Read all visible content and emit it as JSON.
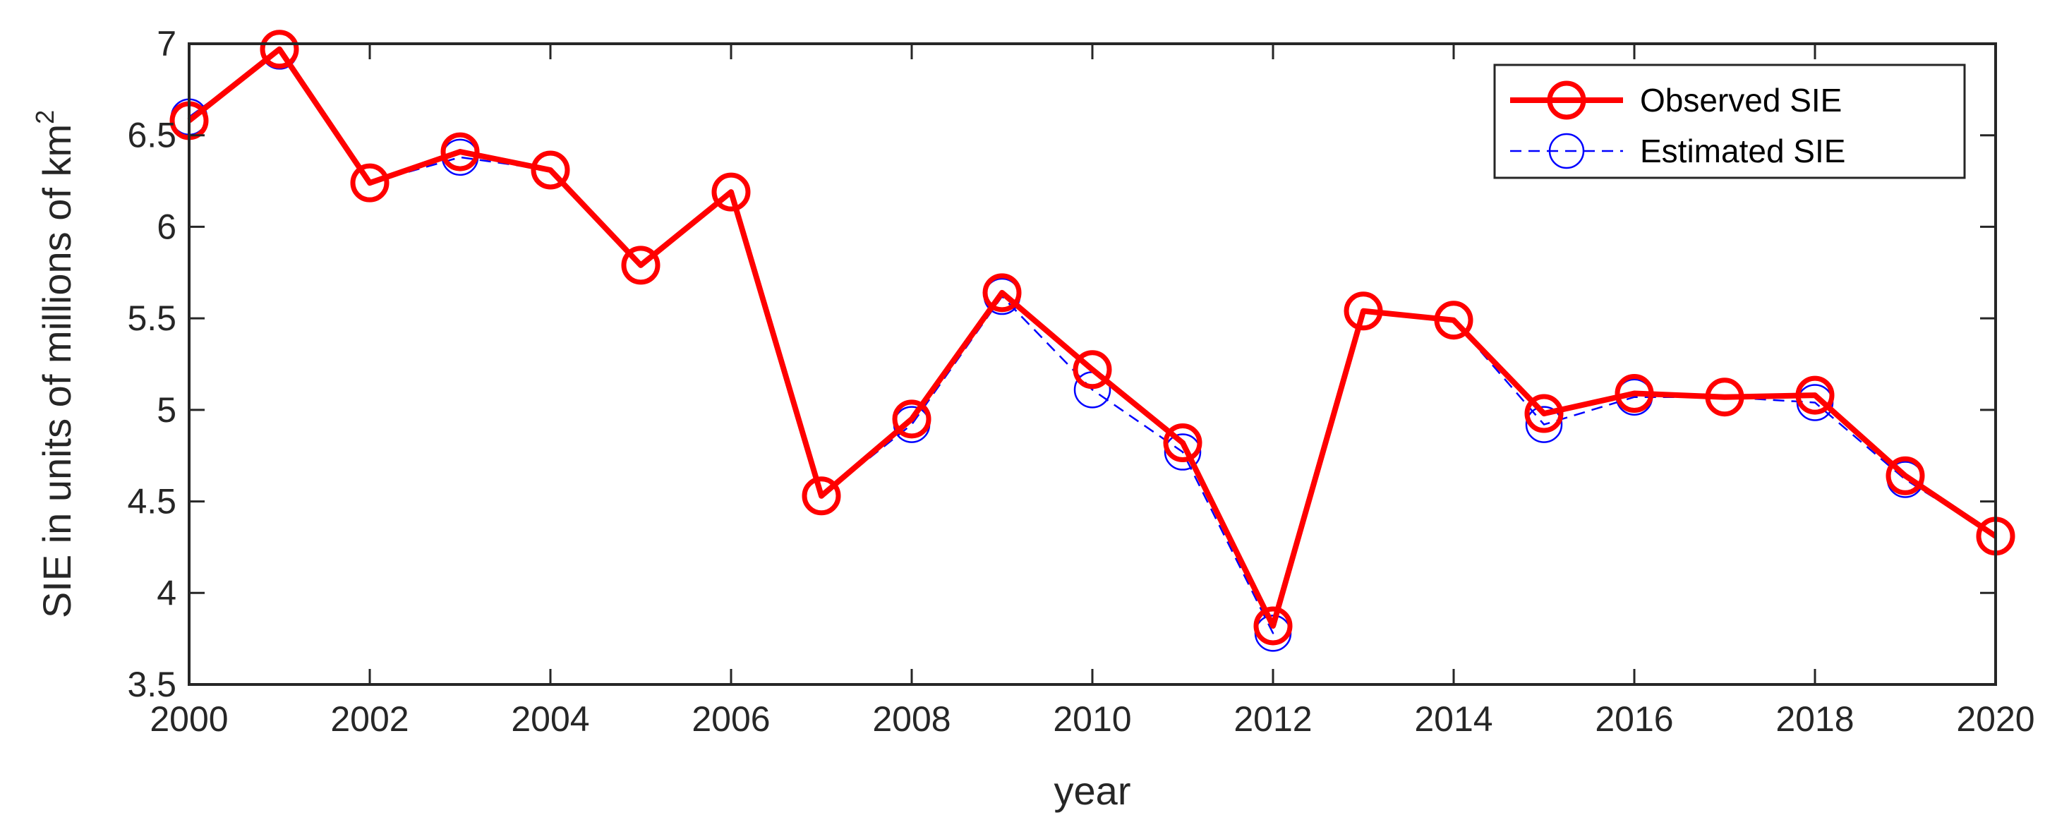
{
  "chart_data": {
    "type": "line",
    "xlabel": "year",
    "ylabel": "SIE in units of millions of km",
    "ylabel_sup": "2",
    "xlim": [
      2000,
      2020
    ],
    "ylim": [
      3.5,
      7
    ],
    "x_ticks": [
      2000,
      2002,
      2004,
      2006,
      2008,
      2010,
      2012,
      2014,
      2016,
      2018,
      2020
    ],
    "y_ticks": [
      3.5,
      4,
      4.5,
      5,
      5.5,
      6,
      6.5,
      7
    ],
    "grid": false,
    "legend_position": "top-right",
    "x": [
      2000,
      2001,
      2002,
      2003,
      2004,
      2005,
      2006,
      2007,
      2008,
      2009,
      2010,
      2011,
      2012,
      2013,
      2014,
      2015,
      2016,
      2017,
      2018,
      2019,
      2020
    ],
    "series": [
      {
        "name": "Observed SIE",
        "color": "#ff0000",
        "style": "solid",
        "values": [
          6.58,
          6.97,
          6.24,
          6.41,
          6.31,
          5.79,
          6.19,
          4.53,
          4.95,
          5.64,
          5.22,
          4.82,
          3.82,
          5.54,
          5.49,
          4.98,
          5.09,
          5.07,
          5.08,
          4.64,
          4.31
        ]
      },
      {
        "name": "Estimated SIE",
        "color": "#0000ff",
        "style": "dashed",
        "values": [
          6.6,
          6.96,
          6.24,
          6.38,
          6.31,
          5.79,
          6.19,
          4.53,
          4.92,
          5.62,
          5.11,
          4.77,
          3.78,
          5.54,
          5.49,
          4.92,
          5.07,
          5.07,
          5.04,
          4.62,
          4.31
        ]
      }
    ]
  }
}
